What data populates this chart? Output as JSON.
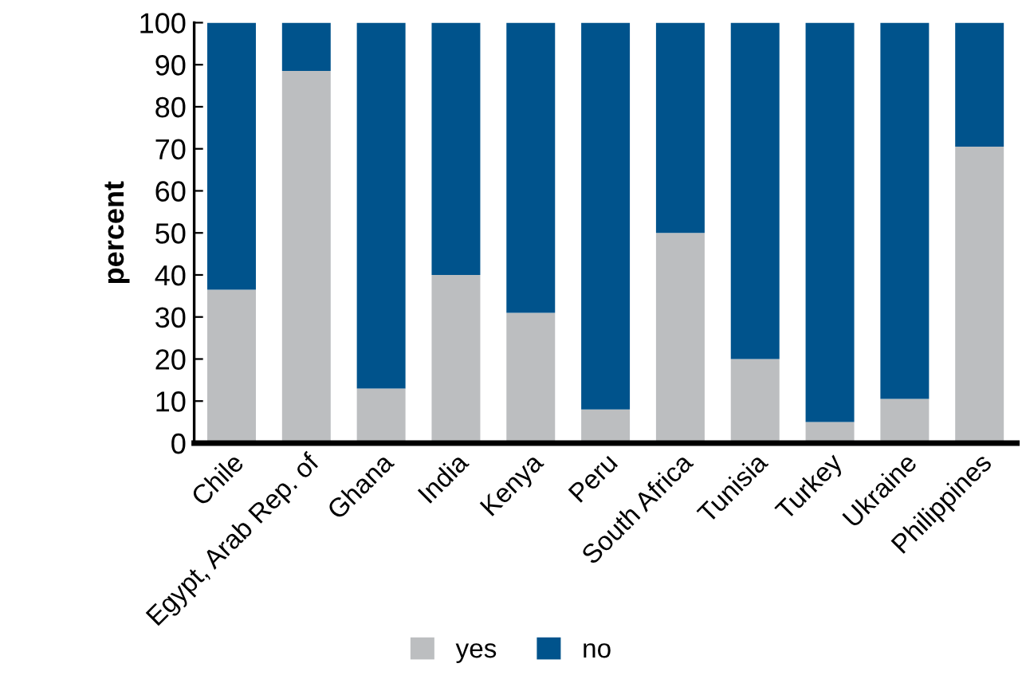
{
  "chart_data": {
    "type": "bar",
    "stacked": true,
    "ylabel": "percent",
    "categories": [
      "Chile",
      "Egypt, Arab Rep. of",
      "Ghana",
      "India",
      "Kenya",
      "Peru",
      "South Africa",
      "Tunisia",
      "Turkey",
      "Ukraine",
      "Philippines"
    ],
    "series": [
      {
        "name": "yes",
        "color": "#bcbec0",
        "values": [
          36.5,
          88.5,
          13,
          40,
          31,
          8,
          50,
          20,
          5,
          10.5,
          70.5
        ]
      },
      {
        "name": "no",
        "color": "#00538c",
        "values": [
          63.5,
          11.5,
          87,
          60,
          69,
          92,
          50,
          80,
          95,
          89.5,
          29.5
        ]
      }
    ],
    "ylim": [
      0,
      100
    ],
    "yticks": [
      0,
      10,
      20,
      30,
      40,
      50,
      60,
      70,
      80,
      90,
      100
    ],
    "grid": false,
    "legend": "bottom"
  }
}
